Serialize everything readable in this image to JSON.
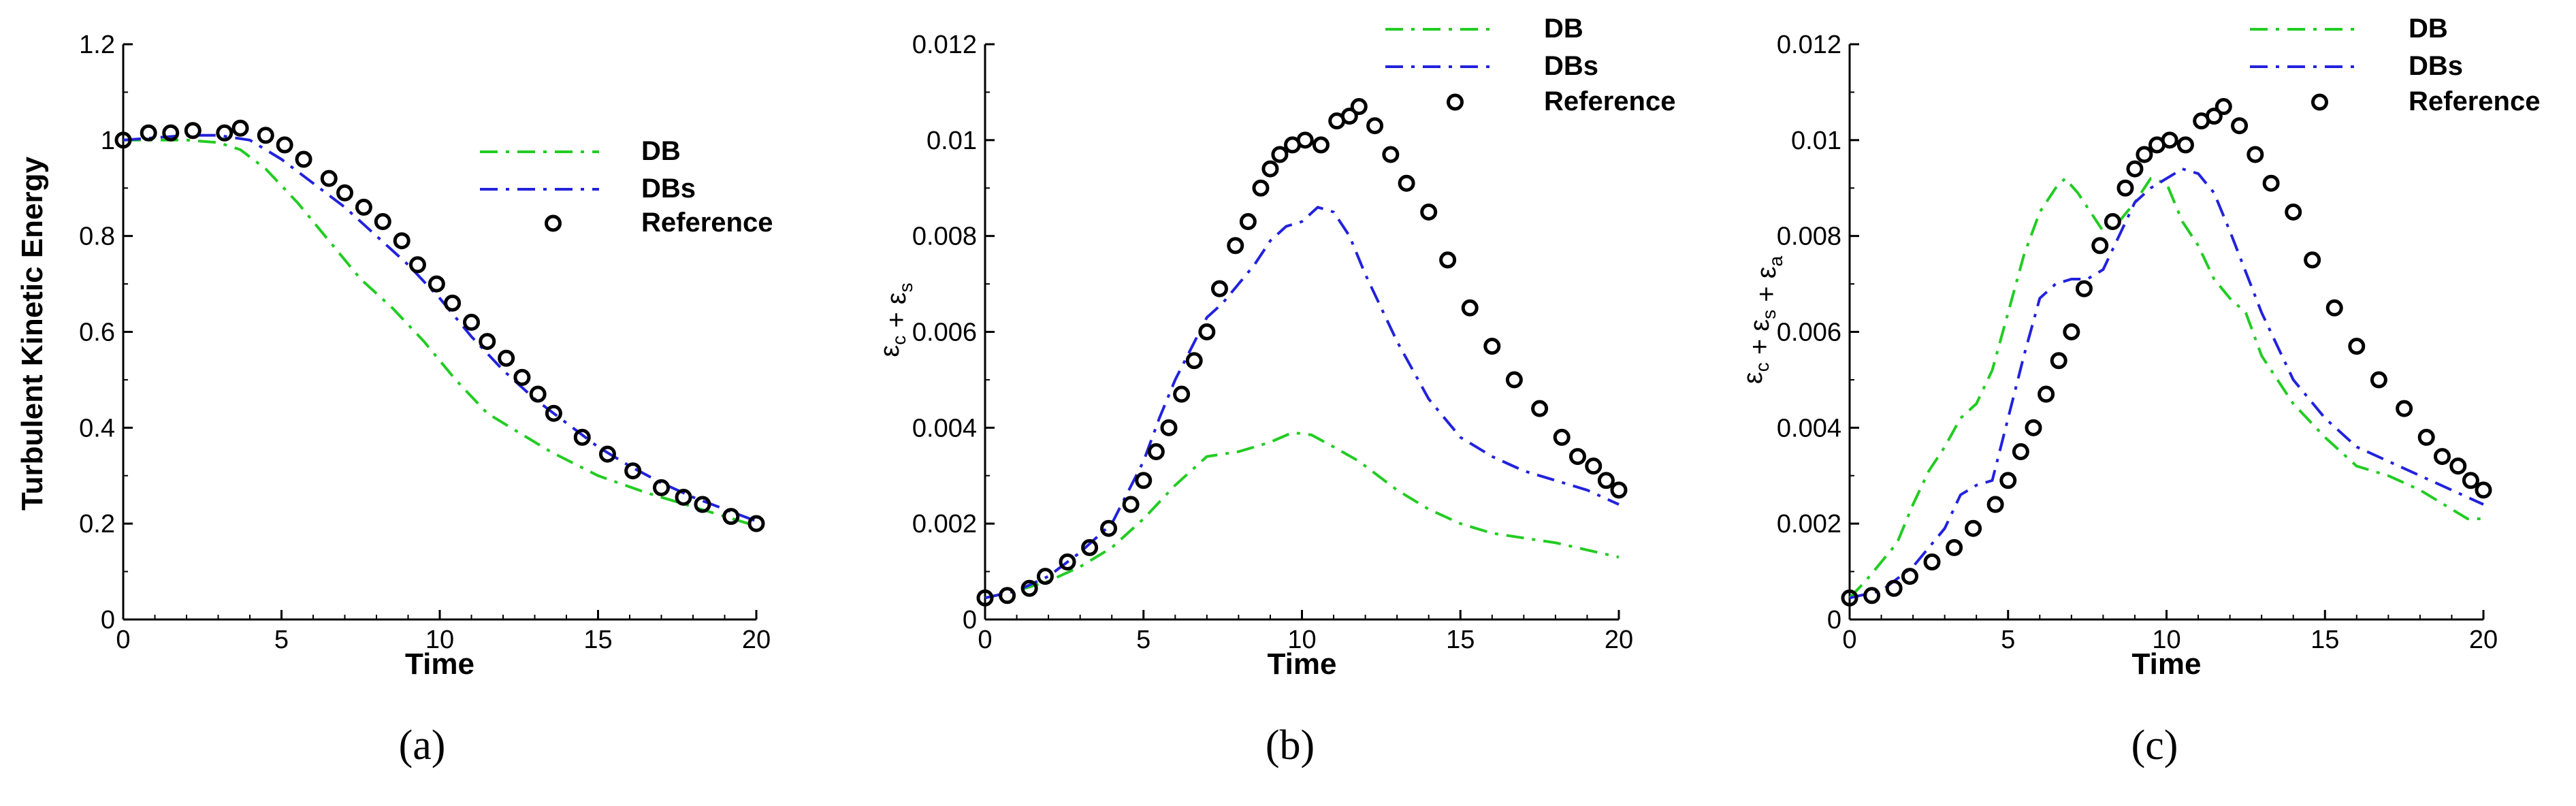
{
  "colors": {
    "DB": "#22cc22",
    "DBs": "#2222dd",
    "Reference": "#000000"
  },
  "chart_data": [
    {
      "type": "line",
      "caption": "(a)",
      "xlabel": "Time",
      "ylabel": "Turbulent Kinetic Energy",
      "xlim": [
        0,
        20
      ],
      "ylim": [
        0,
        1.2
      ],
      "xticks": [
        0,
        5,
        10,
        15,
        20
      ],
      "xtick_labels": [
        "0",
        "5",
        "10",
        "15",
        "20"
      ],
      "yticks": [
        0,
        0.2,
        0.4,
        0.6,
        0.8,
        1.0,
        1.2
      ],
      "ytick_labels": [
        "0",
        "0.2",
        "0.4",
        "0.6",
        "0.8",
        "1",
        "1.2"
      ],
      "legend": [
        "DB",
        "DBs",
        "Reference"
      ],
      "series": [
        {
          "name": "DB",
          "style": "dashdot",
          "x": [
            0,
            2,
            3,
            3.7,
            4.5,
            5.5,
            6.5,
            7.5,
            8.5,
            9.5,
            10.5,
            11.5,
            12.5,
            13.5,
            15,
            16.5,
            18,
            19,
            20
          ],
          "y": [
            1.0,
            1.0,
            0.995,
            0.98,
            0.94,
            0.87,
            0.79,
            0.71,
            0.65,
            0.58,
            0.5,
            0.43,
            0.39,
            0.35,
            0.3,
            0.265,
            0.235,
            0.215,
            0.195
          ]
        },
        {
          "name": "DBs",
          "style": "dashdot",
          "x": [
            0,
            2,
            3,
            4,
            5,
            6,
            7,
            8,
            9,
            10,
            11,
            12,
            13,
            14,
            15,
            16,
            17,
            18,
            19,
            20
          ],
          "y": [
            1.0,
            1.01,
            1.01,
            1.0,
            0.96,
            0.91,
            0.86,
            0.8,
            0.74,
            0.67,
            0.59,
            0.52,
            0.46,
            0.41,
            0.36,
            0.32,
            0.285,
            0.255,
            0.23,
            0.205
          ]
        },
        {
          "name": "Reference",
          "style": "markers",
          "x": [
            0,
            0.8,
            1.5,
            2.2,
            3.2,
            3.7,
            4.5,
            5.1,
            5.7,
            6.5,
            7.0,
            7.6,
            8.2,
            8.8,
            9.3,
            9.9,
            10.4,
            11.0,
            11.5,
            12.1,
            12.6,
            13.1,
            13.6,
            14.5,
            15.3,
            16.1,
            17.0,
            17.7,
            18.3,
            19.2,
            20.0
          ],
          "y": [
            1.0,
            1.015,
            1.015,
            1.02,
            1.015,
            1.025,
            1.01,
            0.99,
            0.96,
            0.92,
            0.89,
            0.86,
            0.83,
            0.79,
            0.74,
            0.7,
            0.66,
            0.62,
            0.58,
            0.545,
            0.505,
            0.47,
            0.43,
            0.38,
            0.345,
            0.31,
            0.275,
            0.255,
            0.24,
            0.215,
            0.2
          ]
        }
      ]
    },
    {
      "type": "line",
      "caption": "(b)",
      "xlabel": "Time",
      "ylabel": "εc + εs",
      "ylabel_terms": [
        {
          "sym": "ε",
          "sub": "c"
        },
        {
          "sym": "ε",
          "sub": "s"
        }
      ],
      "xlim": [
        0,
        20
      ],
      "ylim": [
        0,
        0.012
      ],
      "xticks": [
        0,
        5,
        10,
        15,
        20
      ],
      "xtick_labels": [
        "0",
        "5",
        "10",
        "15",
        "20"
      ],
      "yticks": [
        0,
        0.002,
        0.004,
        0.006,
        0.008,
        0.01,
        0.012
      ],
      "ytick_labels": [
        "0",
        "0.002",
        "0.004",
        "0.006",
        "0.008",
        "0.01",
        "0.012"
      ],
      "legend": [
        "DB",
        "DBs",
        "Reference"
      ],
      "series": [
        {
          "name": "DB",
          "style": "dashdot",
          "x": [
            0,
            1,
            2,
            3,
            4,
            5,
            6,
            7,
            8,
            9,
            9.7,
            10.3,
            11,
            11.8,
            13,
            14,
            15,
            16,
            17,
            18,
            19,
            20
          ],
          "y": [
            0.00045,
            0.0006,
            0.0008,
            0.0011,
            0.0015,
            0.0021,
            0.0028,
            0.0034,
            0.0035,
            0.0037,
            0.0039,
            0.00385,
            0.0036,
            0.0033,
            0.0027,
            0.0023,
            0.002,
            0.0018,
            0.0017,
            0.0016,
            0.00145,
            0.0013
          ]
        },
        {
          "name": "DBs",
          "style": "dashdot",
          "x": [
            0,
            1,
            2,
            3,
            4,
            5,
            5.5,
            6,
            7,
            7.5,
            8,
            8.5,
            9,
            9.5,
            10,
            10.5,
            11,
            11.5,
            12,
            13,
            14,
            15,
            16,
            17,
            18,
            19,
            20
          ],
          "y": [
            0.00045,
            0.0006,
            0.0009,
            0.0014,
            0.002,
            0.0033,
            0.0042,
            0.005,
            0.0063,
            0.0066,
            0.007,
            0.0074,
            0.0079,
            0.0082,
            0.0083,
            0.0086,
            0.0085,
            0.008,
            0.0072,
            0.0058,
            0.0046,
            0.0038,
            0.0034,
            0.0031,
            0.0029,
            0.0027,
            0.0024
          ]
        },
        {
          "name": "Reference",
          "style": "markers",
          "x": [
            0,
            0.7,
            1.4,
            1.9,
            2.6,
            3.3,
            3.9,
            4.6,
            5.0,
            5.4,
            5.8,
            6.2,
            6.6,
            7.0,
            7.4,
            7.9,
            8.3,
            8.7,
            9.0,
            9.3,
            9.7,
            10.1,
            10.6,
            11.1,
            11.5,
            11.8,
            12.3,
            12.8,
            13.3,
            14.0,
            14.6,
            15.3,
            16.0,
            16.7,
            17.5,
            18.2,
            18.7,
            19.2,
            19.6,
            20.0
          ],
          "y": [
            0.00045,
            0.0005,
            0.00065,
            0.0009,
            0.0012,
            0.0015,
            0.0019,
            0.0024,
            0.0029,
            0.0035,
            0.004,
            0.0047,
            0.0054,
            0.006,
            0.0069,
            0.0078,
            0.0083,
            0.009,
            0.0094,
            0.0097,
            0.0099,
            0.01,
            0.0099,
            0.0104,
            0.0105,
            0.0107,
            0.0103,
            0.0097,
            0.0091,
            0.0085,
            0.0075,
            0.0065,
            0.0057,
            0.005,
            0.0044,
            0.0038,
            0.0034,
            0.0032,
            0.0029,
            0.0027
          ]
        }
      ]
    },
    {
      "type": "line",
      "caption": "(c)",
      "xlabel": "Time",
      "ylabel": "εc + εs + εa",
      "ylabel_terms": [
        {
          "sym": "ε",
          "sub": "c"
        },
        {
          "sym": "ε",
          "sub": "s"
        },
        {
          "sym": "ε",
          "sub": "a"
        }
      ],
      "xlim": [
        0,
        20
      ],
      "ylim": [
        0,
        0.012
      ],
      "xticks": [
        0,
        5,
        10,
        15,
        20
      ],
      "xtick_labels": [
        "0",
        "5",
        "10",
        "15",
        "20"
      ],
      "yticks": [
        0,
        0.002,
        0.004,
        0.006,
        0.008,
        0.01,
        0.012
      ],
      "ytick_labels": [
        "0",
        "0.002",
        "0.004",
        "0.006",
        "0.008",
        "0.01",
        "0.012"
      ],
      "legend": [
        "DB",
        "DBs",
        "Reference"
      ],
      "series": [
        {
          "name": "DB",
          "style": "dashdot",
          "x": [
            0,
            0.5,
            1,
            1.5,
            2,
            2.5,
            3,
            3.5,
            4,
            4.5,
            5,
            5.5,
            6,
            6.5,
            6.8,
            7.2,
            7.6,
            8,
            8.5,
            9,
            9.5,
            10,
            10.5,
            11,
            11.5,
            12,
            12.5,
            13,
            14,
            15,
            16,
            17,
            18,
            19,
            19.5,
            20
          ],
          "y": [
            0.00045,
            0.0008,
            0.0012,
            0.0016,
            0.0024,
            0.0031,
            0.0036,
            0.0042,
            0.0045,
            0.0052,
            0.0064,
            0.0076,
            0.0085,
            0.009,
            0.0092,
            0.0089,
            0.0085,
            0.0081,
            0.0083,
            0.0087,
            0.0092,
            0.0091,
            0.0083,
            0.0078,
            0.0071,
            0.0067,
            0.0064,
            0.0055,
            0.0045,
            0.0038,
            0.0032,
            0.003,
            0.0027,
            0.0023,
            0.0021,
            0.0021
          ]
        },
        {
          "name": "DBs",
          "style": "dashdot",
          "x": [
            0,
            1,
            2,
            3,
            3.5,
            4,
            4.5,
            5,
            5.5,
            6,
            6.5,
            7,
            7.5,
            8,
            8.5,
            9,
            9.5,
            10,
            10.5,
            11,
            11.5,
            12,
            13,
            14,
            15,
            16,
            17,
            18,
            19,
            20
          ],
          "y": [
            0.00045,
            0.0006,
            0.0011,
            0.0019,
            0.0026,
            0.0028,
            0.0029,
            0.0042,
            0.0055,
            0.0067,
            0.007,
            0.0071,
            0.0071,
            0.0073,
            0.008,
            0.0087,
            0.009,
            0.0092,
            0.0094,
            0.0093,
            0.0089,
            0.0081,
            0.0064,
            0.005,
            0.0042,
            0.0036,
            0.0033,
            0.003,
            0.0027,
            0.0024
          ]
        },
        {
          "name": "Reference",
          "style": "markers",
          "x": [
            0,
            0.7,
            1.4,
            1.9,
            2.6,
            3.3,
            3.9,
            4.6,
            5.0,
            5.4,
            5.8,
            6.2,
            6.6,
            7.0,
            7.4,
            7.9,
            8.3,
            8.7,
            9.0,
            9.3,
            9.7,
            10.1,
            10.6,
            11.1,
            11.5,
            11.8,
            12.3,
            12.8,
            13.3,
            14.0,
            14.6,
            15.3,
            16.0,
            16.7,
            17.5,
            18.2,
            18.7,
            19.2,
            19.6,
            20.0
          ],
          "y": [
            0.00045,
            0.0005,
            0.00065,
            0.0009,
            0.0012,
            0.0015,
            0.0019,
            0.0024,
            0.0029,
            0.0035,
            0.004,
            0.0047,
            0.0054,
            0.006,
            0.0069,
            0.0078,
            0.0083,
            0.009,
            0.0094,
            0.0097,
            0.0099,
            0.01,
            0.0099,
            0.0104,
            0.0105,
            0.0107,
            0.0103,
            0.0097,
            0.0091,
            0.0085,
            0.0075,
            0.0065,
            0.0057,
            0.005,
            0.0044,
            0.0038,
            0.0034,
            0.0032,
            0.0029,
            0.0027
          ]
        }
      ]
    }
  ]
}
